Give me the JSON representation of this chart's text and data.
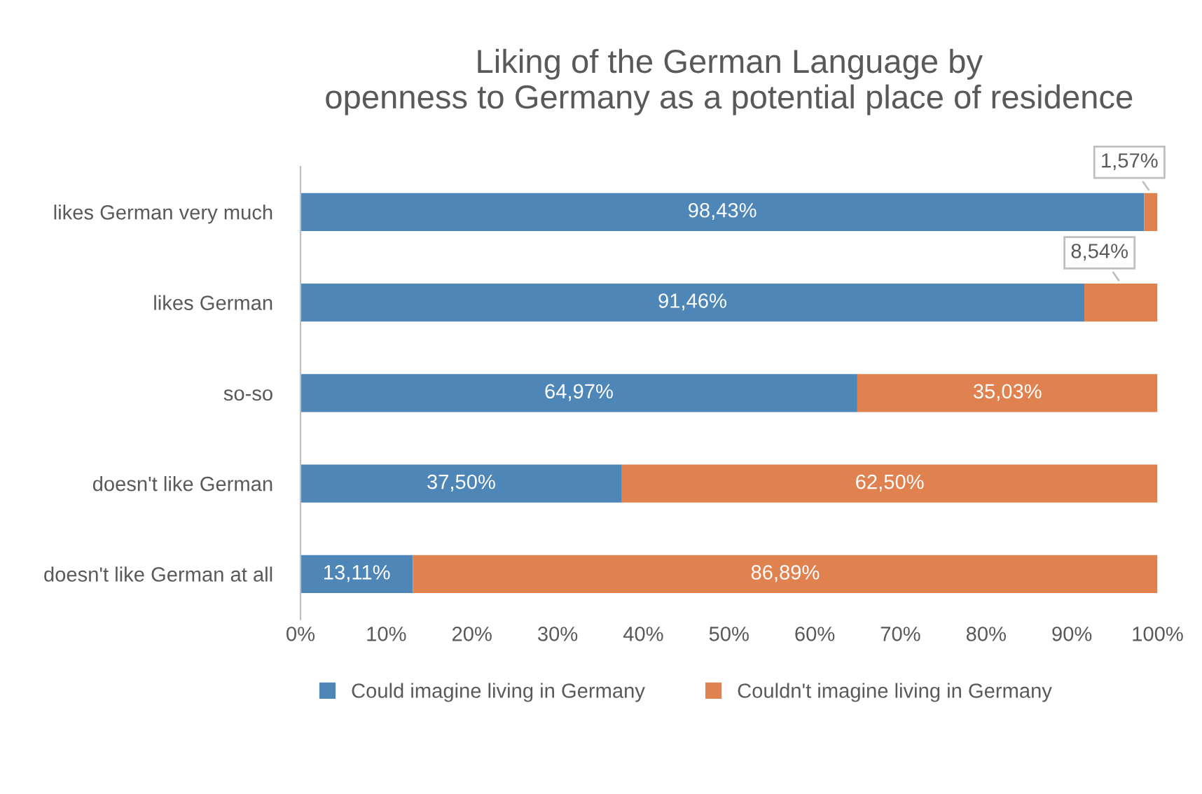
{
  "chart_data": {
    "type": "bar",
    "orientation": "horizontal",
    "stacked": true,
    "title": "Liking of the German Language by\nopenness to Germany as a potential place of residence",
    "categories": [
      "likes German very much",
      "likes German",
      "so-so",
      "doesn't like German",
      "doesn't like German at all"
    ],
    "series": [
      {
        "name": "Could imagine living in Germany",
        "color": "#4e86b7",
        "values": [
          98.43,
          91.46,
          64.97,
          37.5,
          13.11
        ],
        "value_labels": [
          "98,43%",
          "91,46%",
          "64,97%",
          "37,50%",
          "13,11%"
        ]
      },
      {
        "name": "Couldn't imagine living in Germany",
        "color": "#df8250",
        "values": [
          1.57,
          8.54,
          35.03,
          62.5,
          86.89
        ],
        "value_labels": [
          "1,57%",
          "8,54%",
          "35,03%",
          "62,50%",
          "86,89%"
        ]
      }
    ],
    "xlim": [
      0,
      100
    ],
    "xticks": [
      {
        "value": 0,
        "label": "0%"
      },
      {
        "value": 10,
        "label": "10%"
      },
      {
        "value": 20,
        "label": "20%"
      },
      {
        "value": 30,
        "label": "30%"
      },
      {
        "value": 40,
        "label": "40%"
      },
      {
        "value": 50,
        "label": "50%"
      },
      {
        "value": 60,
        "label": "60%"
      },
      {
        "value": 70,
        "label": "70%"
      },
      {
        "value": 80,
        "label": "80%"
      },
      {
        "value": 90,
        "label": "90%"
      },
      {
        "value": 100,
        "label": "100%"
      }
    ],
    "grid": false,
    "legend": "bottom"
  }
}
